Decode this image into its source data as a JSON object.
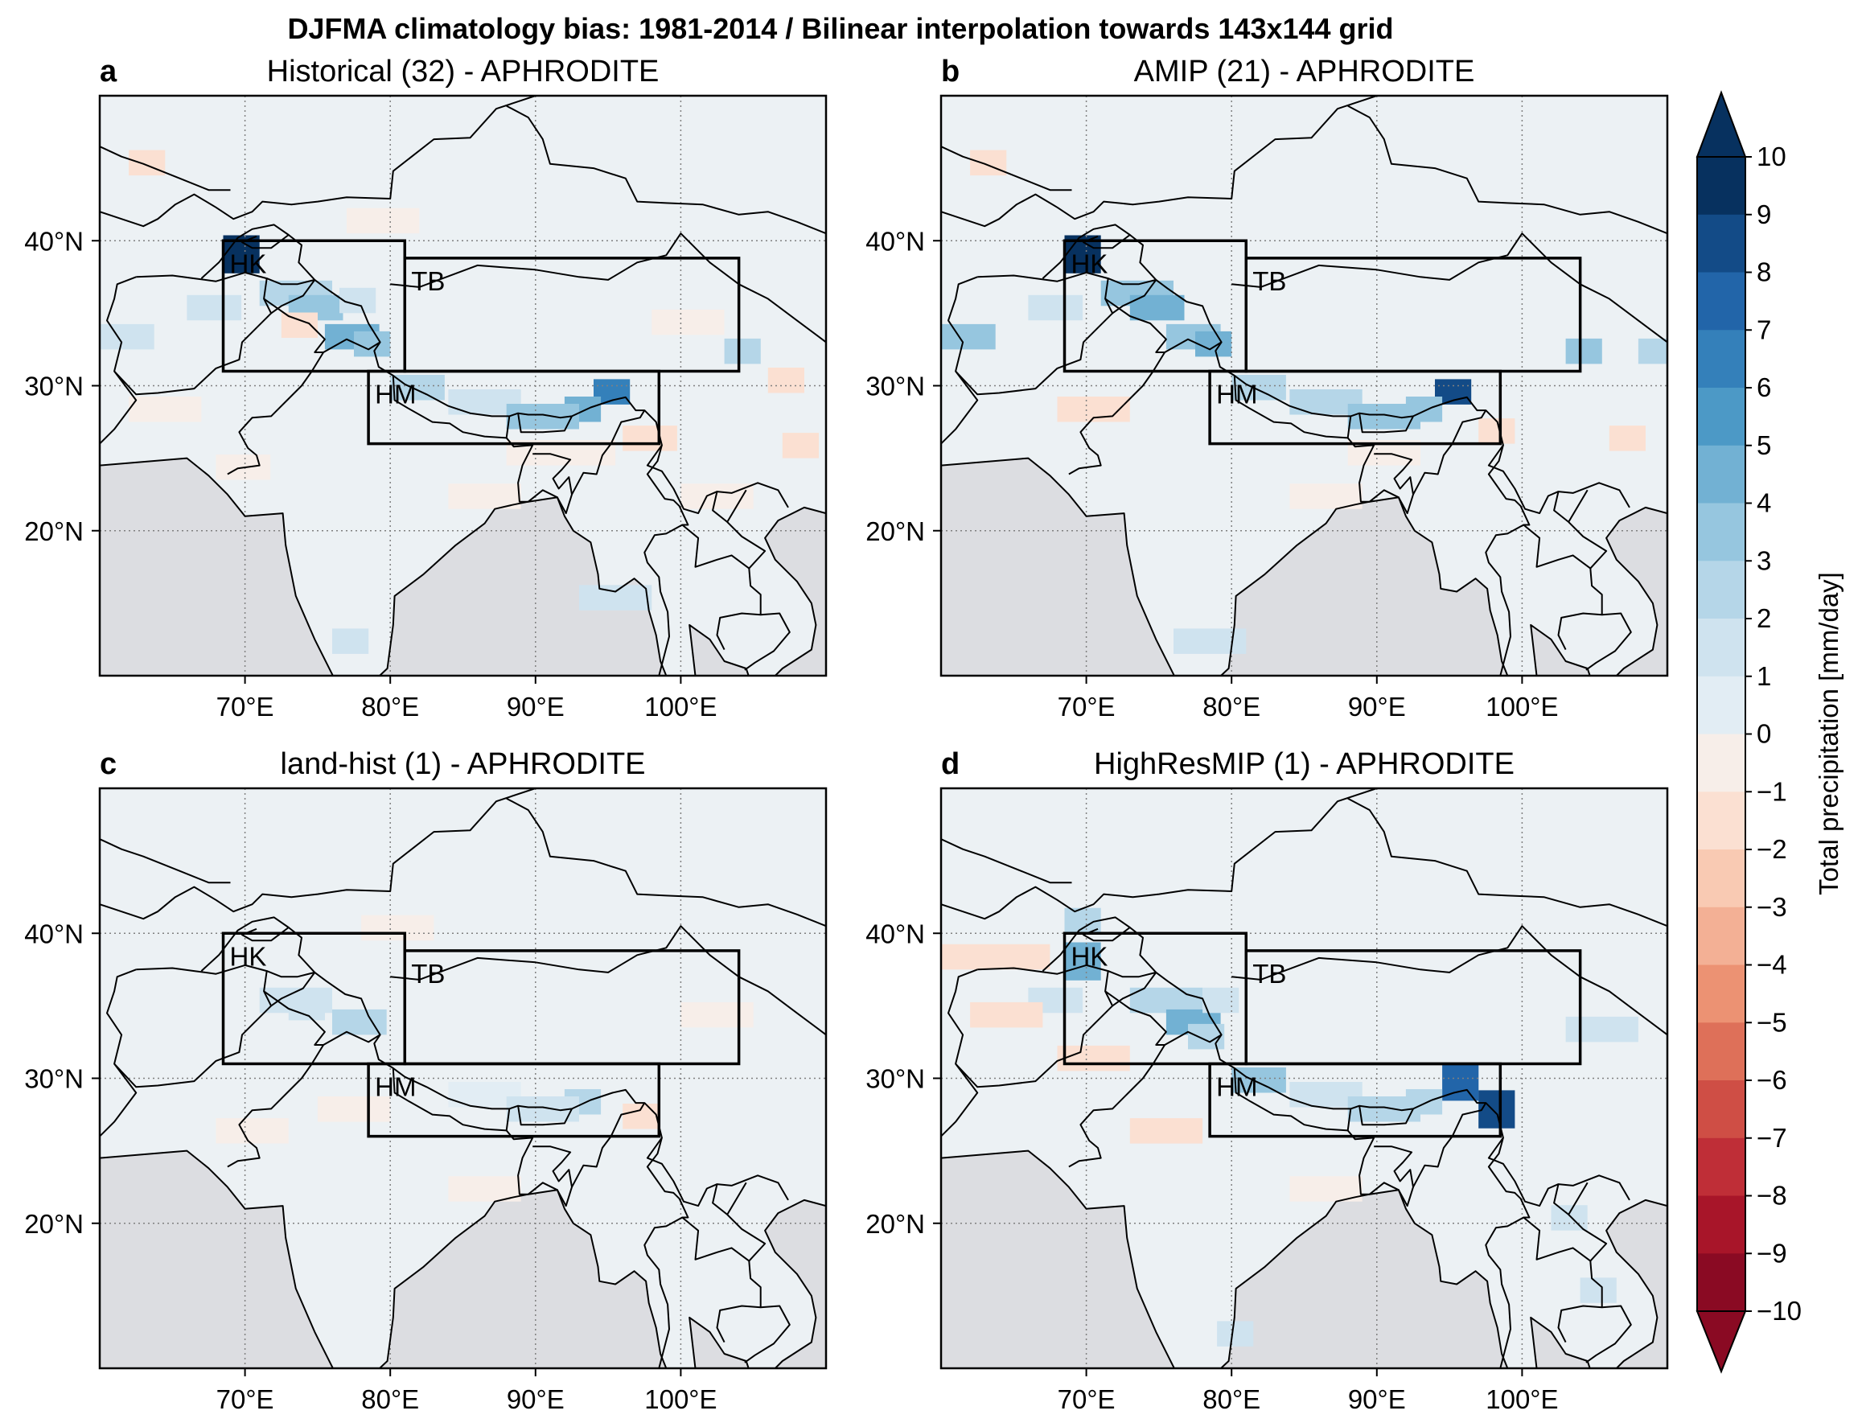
{
  "figure": {
    "title": "DJFMA climatology bias: 1981-2014 / Bilinear interpolation towards 143x144 grid"
  },
  "panels": [
    {
      "label": "a",
      "title": "Historical (32) - APHRODITE"
    },
    {
      "label": "b",
      "title": "AMIP (21) - APHRODITE"
    },
    {
      "label": "c",
      "title": "land-hist (1) - APHRODITE"
    },
    {
      "label": "d",
      "title": "HighResMIP (1) - APHRODITE"
    }
  ],
  "map": {
    "lon_ticks": [
      "70°E",
      "80°E",
      "90°E",
      "100°E"
    ],
    "lat_ticks": [
      "40°N",
      "30°N",
      "20°N"
    ],
    "lon_range": [
      60,
      110
    ],
    "lat_range": [
      10,
      50
    ],
    "regions": [
      {
        "name": "HK",
        "lon": [
          68.5,
          81
        ],
        "lat": [
          31,
          40
        ]
      },
      {
        "name": "TB",
        "lon": [
          81,
          104
        ],
        "lat": [
          31,
          38.8
        ]
      },
      {
        "name": "HM",
        "lon": [
          78.5,
          98.5
        ],
        "lat": [
          26,
          31
        ]
      }
    ]
  },
  "colorbar": {
    "label": "Total precipitation [mm/day]",
    "ticks": [
      "10",
      "9",
      "8",
      "7",
      "6",
      "5",
      "4",
      "3",
      "2",
      "1",
      "0",
      "−1",
      "−2",
      "−3",
      "−4",
      "−5",
      "−6",
      "−7",
      "−8",
      "−9",
      "−10"
    ],
    "colors": [
      "#07315f",
      "#134b87",
      "#2265a9",
      "#3480ba",
      "#4c99c6",
      "#72b1d3",
      "#96c6df",
      "#b5d6e8",
      "#cfe3ef",
      "#e2edf4",
      "#f7eee9",
      "#fbe0d2",
      "#f9cab3",
      "#f3b095",
      "#ec9273",
      "#de7059",
      "#cf4e45",
      "#bf2e37",
      "#a81529",
      "#8a0a23"
    ],
    "extend": "both"
  },
  "ocean_color": "#dcdde1",
  "land_base_color": "#ecf1f4"
}
